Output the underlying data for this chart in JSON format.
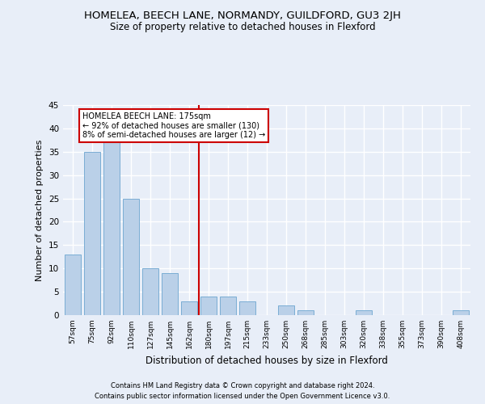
{
  "title": "HOMELEA, BEECH LANE, NORMANDY, GUILDFORD, GU3 2JH",
  "subtitle": "Size of property relative to detached houses in Flexford",
  "xlabel": "Distribution of detached houses by size in Flexford",
  "ylabel": "Number of detached properties",
  "categories": [
    "57sqm",
    "75sqm",
    "92sqm",
    "110sqm",
    "127sqm",
    "145sqm",
    "162sqm",
    "180sqm",
    "197sqm",
    "215sqm",
    "233sqm",
    "250sqm",
    "268sqm",
    "285sqm",
    "303sqm",
    "320sqm",
    "338sqm",
    "355sqm",
    "373sqm",
    "390sqm",
    "408sqm"
  ],
  "values": [
    13,
    35,
    37,
    25,
    10,
    9,
    3,
    4,
    4,
    3,
    0,
    2,
    1,
    0,
    0,
    1,
    0,
    0,
    0,
    0,
    1
  ],
  "bar_color": "#bad0e8",
  "bar_edge_color": "#7aadd4",
  "highlight_index": 7,
  "highlight_color": "#cc0000",
  "annotation_line1": "HOMELEA BEECH LANE: 175sqm",
  "annotation_line2": "← 92% of detached houses are smaller (130)",
  "annotation_line3": "8% of semi-detached houses are larger (12) →",
  "annotation_box_color": "#cc0000",
  "footer1": "Contains HM Land Registry data © Crown copyright and database right 2024.",
  "footer2": "Contains public sector information licensed under the Open Government Licence v3.0.",
  "ylim": [
    0,
    45
  ],
  "yticks": [
    0,
    5,
    10,
    15,
    20,
    25,
    30,
    35,
    40,
    45
  ],
  "background_color": "#e8eef8",
  "plot_background": "#e8eef8"
}
